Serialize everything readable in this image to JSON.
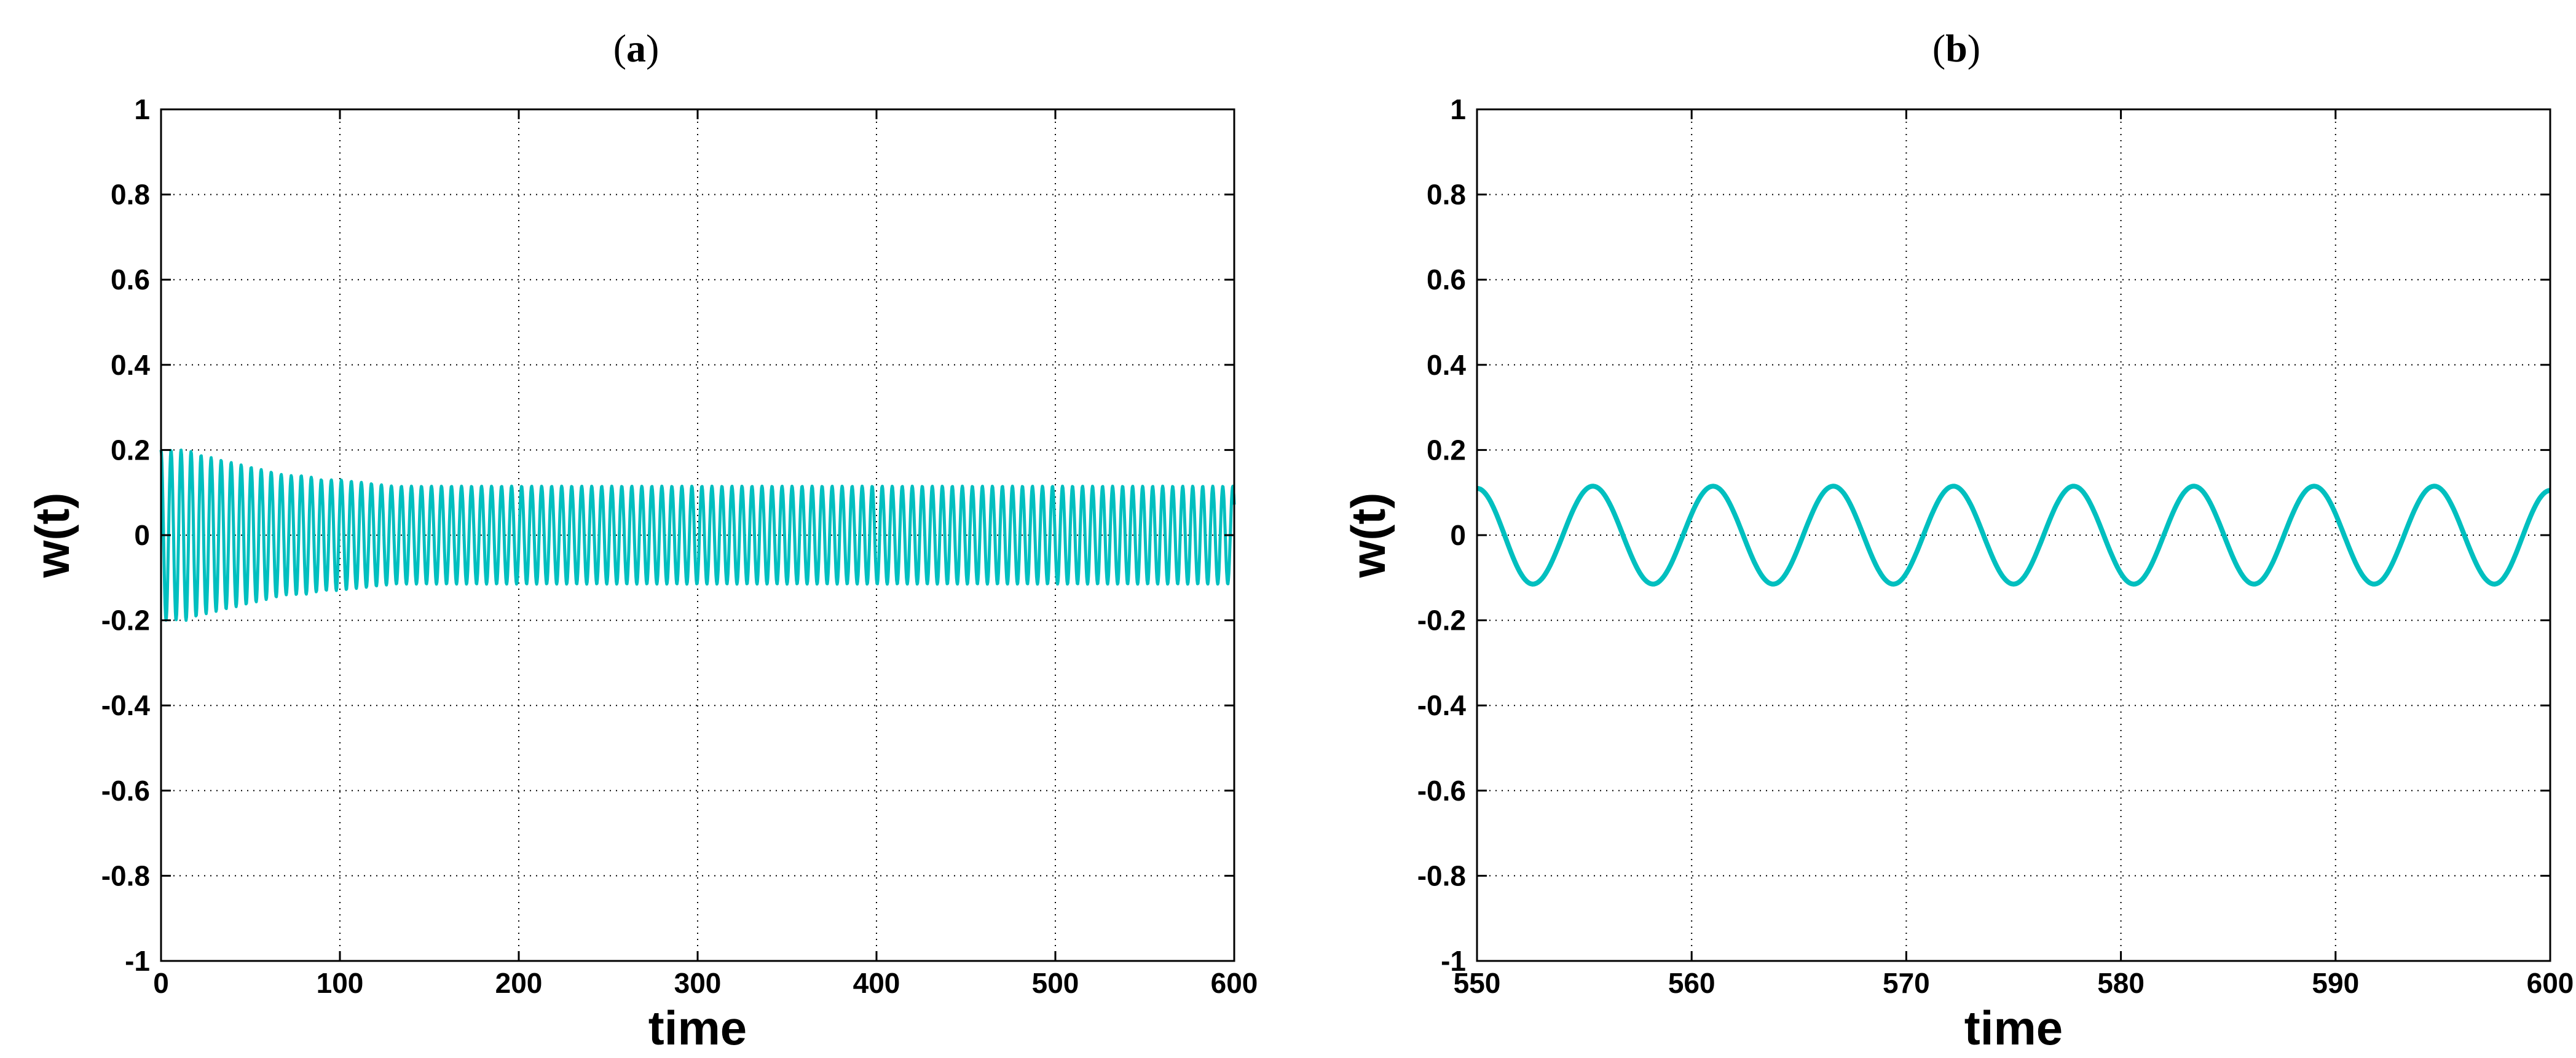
{
  "chart_data": [
    {
      "type": "line",
      "panel_label": {
        "open": "(",
        "letter": "a",
        "close": ")"
      },
      "xlabel": "time",
      "ylabel": "w(t)",
      "xlim": [
        0,
        600
      ],
      "ylim": [
        -1,
        1
      ],
      "xticks": [
        "0",
        "100",
        "200",
        "300",
        "400",
        "500",
        "600"
      ],
      "yticks": [
        "1",
        "0.8",
        "0.6",
        "0.4",
        "0.2",
        "0",
        "-0.2",
        "-0.4",
        "-0.6",
        "-0.8",
        "-1"
      ],
      "grid": true,
      "line_color": "#00BFBF",
      "series": [
        {
          "x": [
            0,
            5,
            10,
            15,
            20,
            30,
            40,
            50,
            60,
            70,
            80,
            90,
            100,
            110,
            120,
            130,
            150,
            200,
            300,
            400,
            500,
            600
          ],
          "envelope": [
            0.2,
            0.2,
            0.2,
            0.2,
            0.19,
            0.18,
            0.17,
            0.16,
            0.15,
            0.14,
            0.14,
            0.13,
            0.13,
            0.125,
            0.12,
            0.115,
            0.115,
            0.115,
            0.115,
            0.115,
            0.115,
            0.115
          ]
        }
      ]
    },
    {
      "type": "line",
      "panel_label": {
        "open": "(",
        "letter": "b",
        "close": ")"
      },
      "xlabel": "time",
      "ylabel": "w(t)",
      "xlim": [
        550,
        600
      ],
      "ylim": [
        -1,
        1
      ],
      "xticks": [
        "550",
        "560",
        "570",
        "580",
        "590",
        "600"
      ],
      "yticks": [
        "1",
        "0.8",
        "0.6",
        "0.4",
        "0.2",
        "0",
        "-0.2",
        "-0.4",
        "-0.6",
        "-0.8",
        "-1"
      ],
      "grid": true,
      "line_color": "#00BFBF",
      "series": [
        {
          "x": [
            550,
            552.6,
            555.4,
            558.2,
            561.0,
            563.8,
            566.6,
            569.4,
            572.2,
            575.0,
            577.8,
            580.6,
            583.4,
            586.2,
            589.0,
            591.8,
            594.6,
            597.4,
            600
          ],
          "y": [
            0.11,
            -0.115,
            0.115,
            -0.115,
            0.115,
            -0.115,
            0.115,
            -0.115,
            0.115,
            -0.115,
            0.115,
            -0.115,
            0.115,
            -0.115,
            0.115,
            -0.115,
            0.115,
            -0.115,
            0.105
          ]
        }
      ]
    }
  ]
}
